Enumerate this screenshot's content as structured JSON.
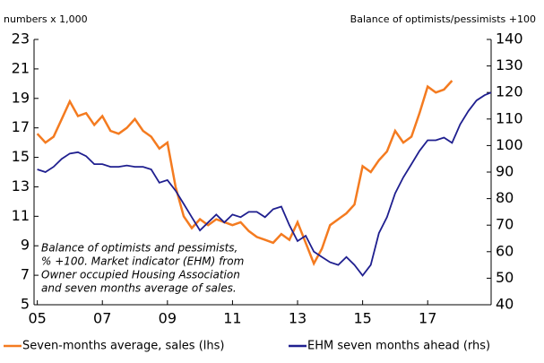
{
  "chart_data": {
    "type": "line",
    "y_label": "numbers x 1,000",
    "y2_label": "Balance of optimists/pessimists +100",
    "annotation": [
      "Balance of optimists and pessimists,",
      "% +100. Market indicator (EHM) from",
      "Owner occupied Housing Association",
      "and seven months average of sales."
    ],
    "x": [
      5,
      5.25,
      5.5,
      5.75,
      6,
      6.25,
      6.5,
      6.75,
      7,
      7.25,
      7.5,
      7.75,
      8,
      8.25,
      8.5,
      8.75,
      9,
      9.25,
      9.5,
      9.75,
      10,
      10.25,
      10.5,
      10.75,
      11,
      11.25,
      11.5,
      11.75,
      12,
      12.25,
      12.5,
      12.75,
      13,
      13.25,
      13.5,
      13.75,
      14,
      14.25,
      14.5,
      14.75,
      15,
      15.25,
      15.5,
      15.75,
      16,
      16.25,
      16.5,
      16.75,
      17,
      17.25,
      17.5,
      17.75,
      18,
      18.25,
      18.5,
      18.75,
      18.95
    ],
    "xlim": [
      4.9,
      18.95
    ],
    "xticks": [
      {
        "value": 5,
        "label": "05"
      },
      {
        "value": 7,
        "label": "07"
      },
      {
        "value": 9,
        "label": "09"
      },
      {
        "value": 11,
        "label": "11"
      },
      {
        "value": 13,
        "label": "13"
      },
      {
        "value": 15,
        "label": "15"
      },
      {
        "value": 17,
        "label": "17"
      }
    ],
    "ylim": [
      5,
      23
    ],
    "yticks": [
      5,
      7,
      9,
      11,
      13,
      15,
      17,
      19,
      21,
      23
    ],
    "y2lim": [
      40,
      140
    ],
    "y2ticks": [
      40,
      50,
      60,
      70,
      80,
      90,
      100,
      110,
      120,
      130,
      140
    ],
    "series": [
      {
        "name": "Seven-months average, sales (lhs)",
        "color": "#f47b20",
        "axis": "y",
        "values": [
          16.6,
          16.0,
          16.4,
          17.6,
          18.8,
          17.8,
          18.0,
          17.2,
          17.8,
          16.8,
          16.6,
          17.0,
          17.6,
          16.8,
          16.4,
          15.6,
          16.0,
          13.0,
          11.0,
          10.2,
          10.8,
          10.4,
          10.8,
          10.6,
          10.4,
          10.6,
          10.0,
          9.6,
          9.4,
          9.2,
          9.8,
          9.4,
          10.6,
          9.2,
          7.8,
          8.8,
          10.4,
          10.8,
          11.2,
          11.8,
          14.4,
          14.0,
          14.8,
          15.4,
          16.8,
          16.0,
          16.4,
          18.0,
          19.8,
          19.4,
          19.6,
          20.2,
          null,
          null,
          null,
          null,
          null
        ]
      },
      {
        "name": "EHM seven months ahead (rhs)",
        "color": "#1f1f8f",
        "axis": "y2",
        "values": [
          91,
          90,
          92,
          95,
          97,
          97.5,
          96,
          93,
          93,
          92,
          92,
          92.5,
          92,
          92,
          91,
          86,
          87,
          83,
          78,
          73,
          68,
          71,
          74,
          71,
          74,
          73,
          75,
          75,
          73,
          76,
          77,
          70,
          64,
          66,
          60,
          58,
          56,
          55,
          58,
          55,
          51,
          55,
          67,
          73,
          82,
          88,
          93,
          98,
          102,
          102,
          103,
          101,
          108,
          113,
          117,
          119,
          120
        ]
      }
    ]
  }
}
